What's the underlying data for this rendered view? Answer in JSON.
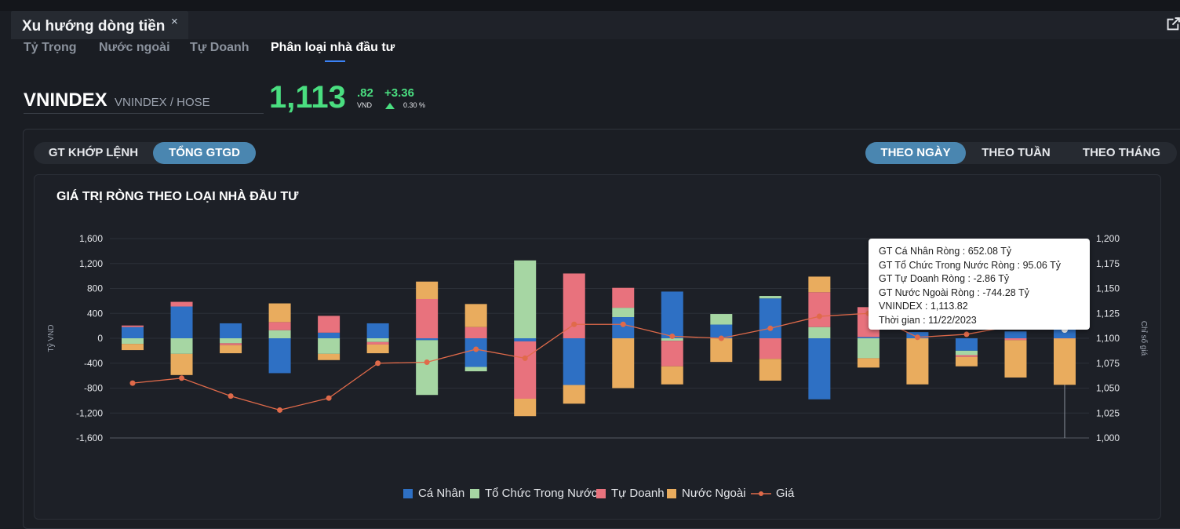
{
  "window": {
    "title": "Xu hướng dòng tiền",
    "close": "×"
  },
  "subtabs": [
    "Tỷ Trọng",
    "Nước ngoài",
    "Tự Doanh",
    "Phân loại nhà đầu tư"
  ],
  "active_subtab": 3,
  "ticker": {
    "symbol": "VNINDEX",
    "exchange": "VNINDEX / HOSE",
    "price_int": "1,113",
    "price_dec": ".82",
    "unit": "VND",
    "change": "+3.36",
    "change_pct": "0.30 %"
  },
  "value_toggle": [
    "GT KHỚP LỆNH",
    "TỔNG GTGD"
  ],
  "period_toggle": [
    "THEO NGÀY",
    "THEO TUẦN",
    "THEO THÁNG"
  ],
  "colors": {
    "ca_nhan": "#2e70c4",
    "to_chuc": "#a6d6a3",
    "tu_doanh": "#e8727d",
    "nuoc_ngoai": "#e9ac5e",
    "gia": "#e06a4a",
    "up": "#4ade80"
  },
  "tooltip": [
    "GT Cá Nhân Ròng  : 652.08 Tỷ",
    "GT Tổ Chức Trong Nước Ròng : 95.06 Tỷ",
    "GT Tự Doanh Ròng : -2.86 Tỷ",
    "GT Nước Ngoài Ròng : -744.28 Tỷ",
    "VNINDEX : 1,113.82",
    "Thời gian : 11/22/2023"
  ],
  "chart_data": {
    "type": "bar",
    "title": "GIÁ TRỊ RÒNG THEO LOẠI NHÀ ĐẦU TƯ",
    "ylabel": "Tỷ VND",
    "y2label": "Chỉ số giá",
    "ylim": [
      -1600,
      1600
    ],
    "y2lim": [
      1000,
      1200
    ],
    "yticks": [
      "1,600",
      "1,200",
      "800",
      "400",
      "0",
      "-400",
      "-800",
      "-1,200",
      "-1,600"
    ],
    "y2ticks": [
      "1,200",
      "1,175",
      "1,150",
      "1,125",
      "1,100",
      "1,075",
      "1,050",
      "1,025",
      "1,000"
    ],
    "stacked": true,
    "grid": true,
    "legend_position": "bottom",
    "series": [
      {
        "name": "Cá Nhân",
        "key": "ca_nhan",
        "values": [
          180,
          510,
          240,
          -560,
          90,
          240,
          -30,
          -460,
          -50,
          -750,
          340,
          750,
          220,
          640,
          -980,
          20,
          100,
          -200,
          110,
          652.08
        ]
      },
      {
        "name": "Tổ Chức Trong Nước",
        "key": "to_chuc",
        "values": [
          -90,
          -250,
          -80,
          130,
          -250,
          -60,
          -880,
          -70,
          1250,
          0,
          150,
          -40,
          170,
          40,
          180,
          -320,
          0,
          -70,
          0,
          95.06
        ]
      },
      {
        "name": "Tự Doanh",
        "key": "tu_doanh",
        "values": [
          25,
          75,
          -30,
          130,
          270,
          -40,
          630,
          180,
          -920,
          1040,
          320,
          -410,
          0,
          -330,
          560,
          480,
          0,
          -30,
          -30,
          -2.86
        ]
      },
      {
        "name": "Nước Ngoài",
        "key": "nuoc_ngoai",
        "values": [
          -100,
          -340,
          -130,
          300,
          -100,
          -140,
          280,
          370,
          -280,
          -300,
          -800,
          -290,
          -380,
          -350,
          250,
          -150,
          -740,
          -150,
          -600,
          -744.28
        ]
      }
    ],
    "line": {
      "name": "Giá",
      "values": [
        1055,
        1060,
        1042,
        1028,
        1040,
        1075,
        1076,
        1089,
        1080,
        1114,
        1114,
        1102,
        1100,
        1110,
        1122,
        1125,
        1101,
        1104,
        1113,
        1113.82
      ]
    }
  },
  "legend_labels": [
    "Cá Nhân",
    "Tổ Chức Trong Nước",
    "Tự Doanh",
    "Nước Ngoài",
    "Giá"
  ]
}
